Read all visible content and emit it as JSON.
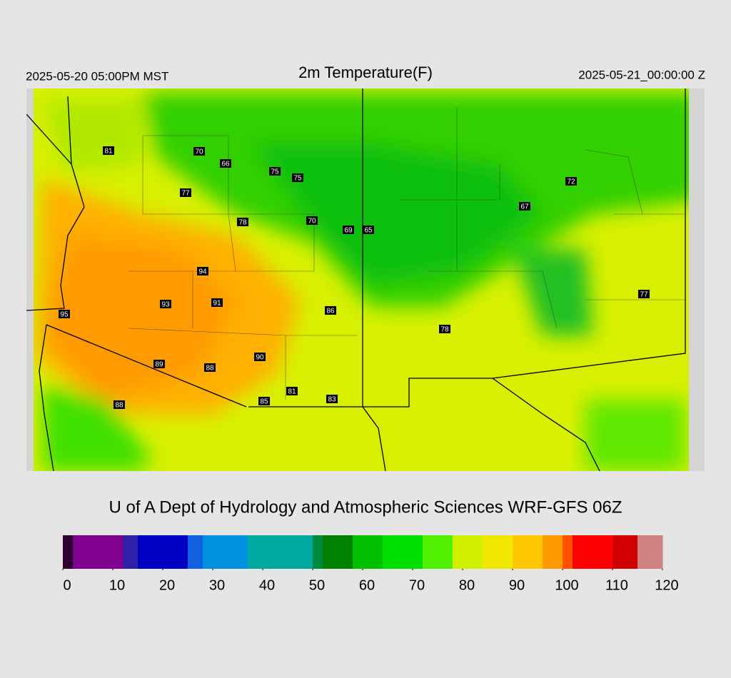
{
  "header": {
    "left": "2025-05-20 05:00PM MST",
    "title": "2m Temperature(F)",
    "right": "2025-05-21_00:00:00 Z"
  },
  "stations": [
    81,
    70,
    66,
    75,
    75,
    77,
    78,
    70,
    69,
    65,
    67,
    72,
    94,
    93,
    91,
    95,
    86,
    78,
    77,
    90,
    89,
    88,
    81,
    85,
    83,
    88
  ],
  "footer": "U of A Dept of Hydrology and Atmospheric Sciences WRF-GFS 06Z",
  "colorbar": {
    "range": [
      0,
      120
    ],
    "ticks": [
      0,
      10,
      20,
      30,
      40,
      50,
      60,
      70,
      80,
      90,
      100,
      110,
      120
    ],
    "bounds": [
      0,
      2,
      12,
      15,
      25,
      28,
      37,
      50,
      52,
      58,
      64,
      72,
      78,
      84,
      90,
      96,
      100,
      102,
      110,
      115,
      120
    ],
    "colors": [
      "#300030",
      "#800090",
      "#3020a8",
      "#0000c0",
      "#1060e0",
      "#0090e0",
      "#00a8a0",
      "#008a40",
      "#008000",
      "#00c000",
      "#00e000",
      "#50f000",
      "#d0f000",
      "#f0e800",
      "#ffc800",
      "#ff9900",
      "#ff5000",
      "#ff0000",
      "#d00000",
      "#d08080"
    ]
  }
}
